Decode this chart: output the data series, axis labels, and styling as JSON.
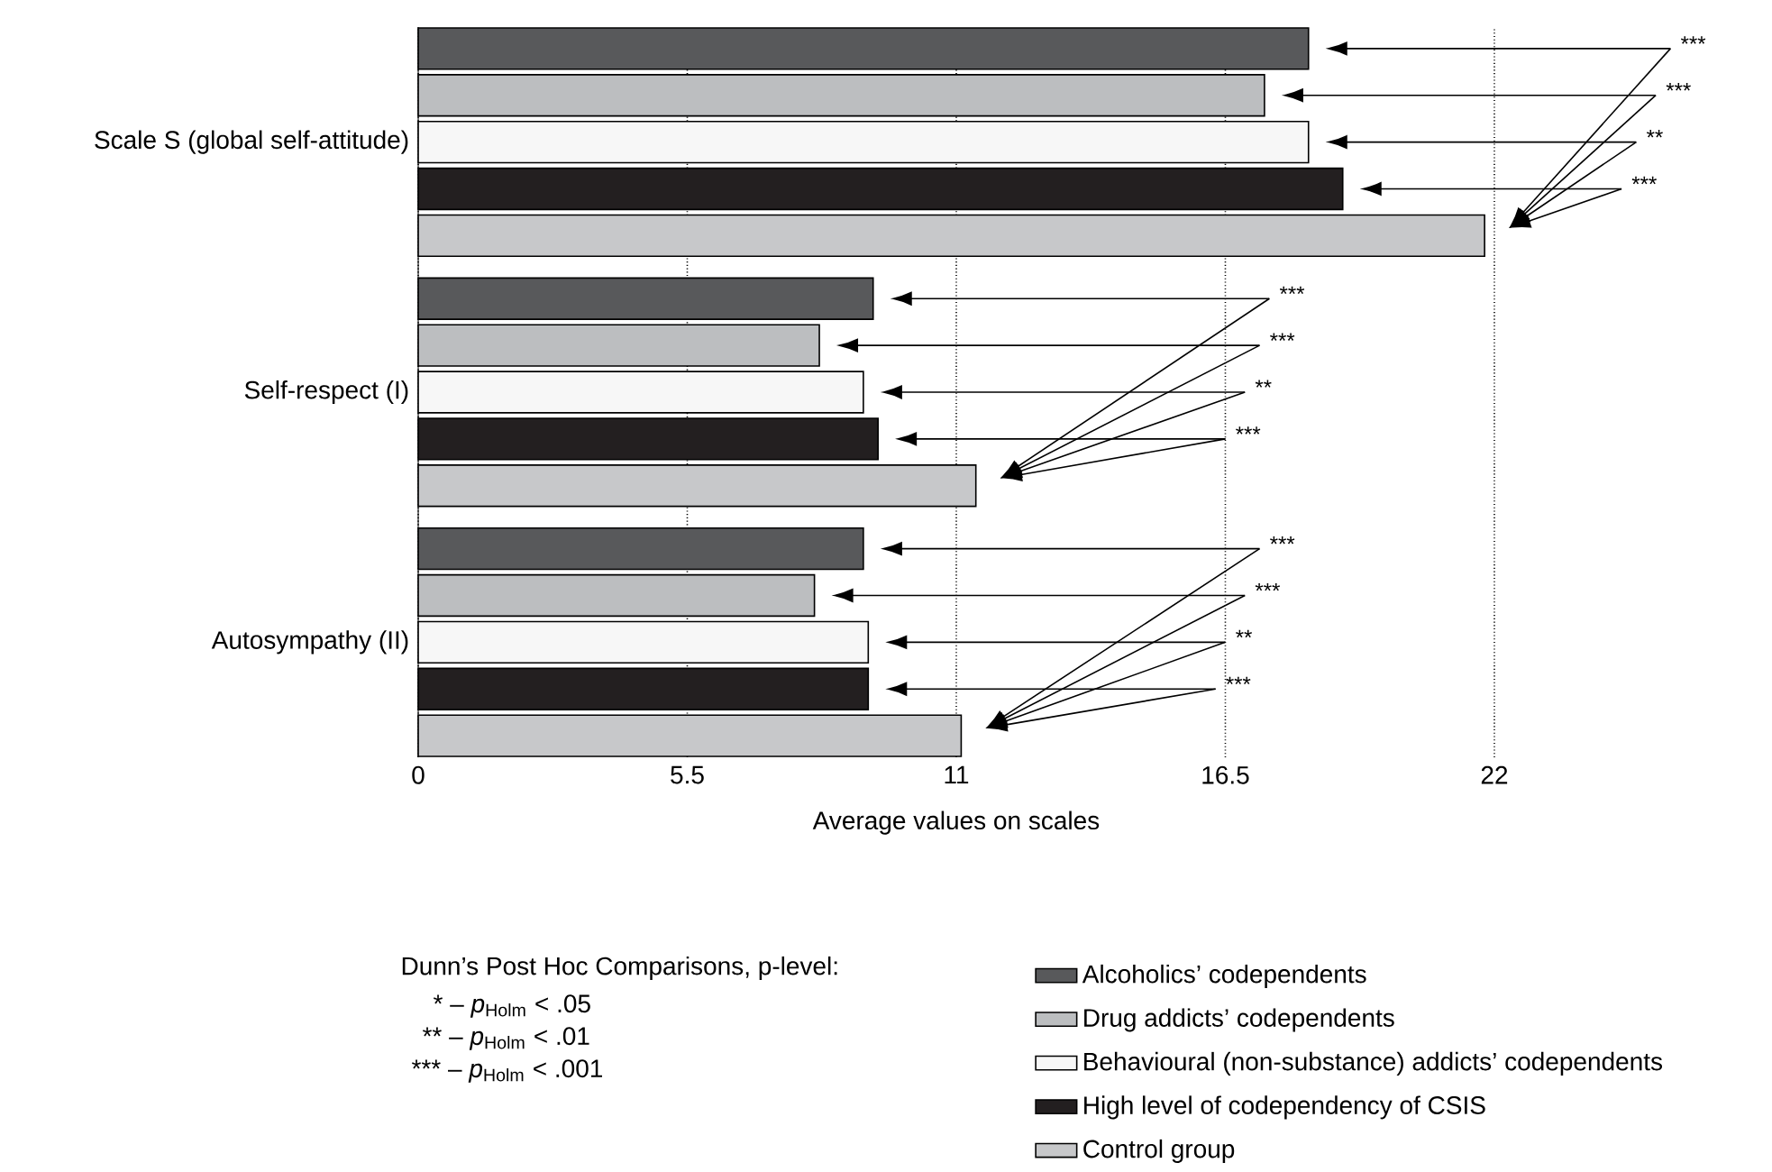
{
  "chart_data": {
    "type": "bar",
    "orientation": "horizontal",
    "categories": [
      "Scale S (global self-attitude)",
      "Self-respect (I)",
      "Autosympathy (II)"
    ],
    "series": [
      {
        "name": "Alcoholics’ codependents",
        "color": "#58595b",
        "values": [
          18.2,
          9.3,
          9.1
        ]
      },
      {
        "name": "Drug addicts’ codependents",
        "color": "#bcbec0",
        "values": [
          17.3,
          8.2,
          8.1
        ]
      },
      {
        "name": "Behavioural (non-substance) addicts’ codependents",
        "color": "#f7f7f7",
        "values": [
          18.2,
          9.1,
          9.2
        ]
      },
      {
        "name": "High level of codependency of CSIS",
        "color": "#231f20",
        "values": [
          18.9,
          9.4,
          9.2
        ]
      },
      {
        "name": "Control group",
        "color": "#c7c8ca",
        "values": [
          21.8,
          11.4,
          11.1
        ]
      }
    ],
    "xlabel": "Average values on scales",
    "xlim": [
      0,
      22
    ],
    "xticks": [
      0,
      5.5,
      11,
      16.5,
      22
    ],
    "grid": "x",
    "legend": "bottom",
    "annotations": [
      "Dunn’s Post Hoc Comparisons, p-level:",
      "* – *p*$_{Holm}$ < .05",
      "** – *p*$_{Holm}$ < .01",
      "*** – *p*$_{Holm}$ < .001",
      "***",
      "***",
      "**",
      "***",
      "***",
      "***",
      "**",
      "***",
      "***",
      "***",
      "**",
      "***"
    ]
  }
}
